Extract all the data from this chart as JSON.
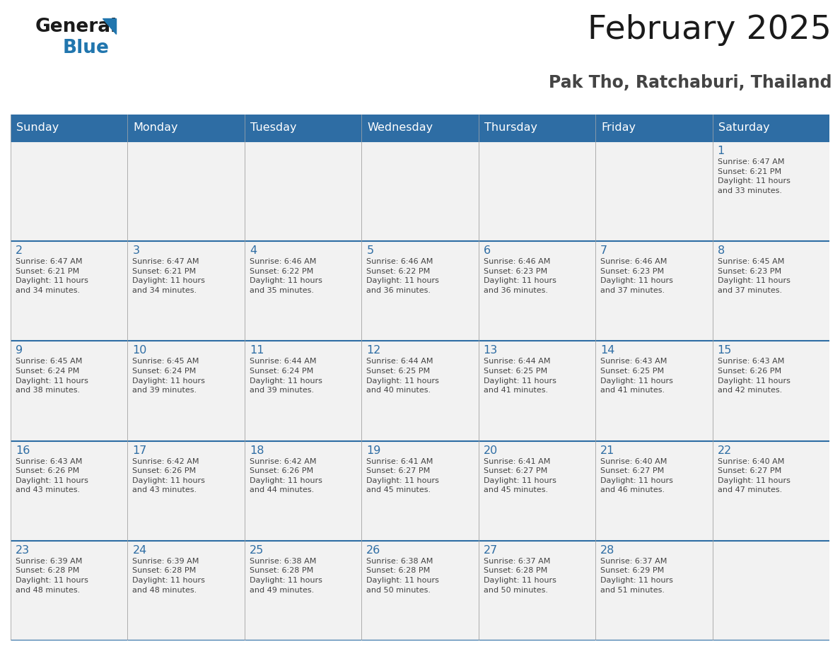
{
  "title": "February 2025",
  "subtitle": "Pak Tho, Ratchaburi, Thailand",
  "header_bg": "#2E6DA4",
  "header_text_color": "#FFFFFF",
  "cell_bg": "#F2F2F2",
  "day_number_color": "#2E6DA4",
  "info_text_color": "#444444",
  "border_color": "#2E6DA4",
  "cell_border_color": "#AAAAAA",
  "days_of_week": [
    "Sunday",
    "Monday",
    "Tuesday",
    "Wednesday",
    "Thursday",
    "Friday",
    "Saturday"
  ],
  "weeks": [
    [
      {
        "day": null,
        "info": null
      },
      {
        "day": null,
        "info": null
      },
      {
        "day": null,
        "info": null
      },
      {
        "day": null,
        "info": null
      },
      {
        "day": null,
        "info": null
      },
      {
        "day": null,
        "info": null
      },
      {
        "day": 1,
        "info": "Sunrise: 6:47 AM\nSunset: 6:21 PM\nDaylight: 11 hours\nand 33 minutes."
      }
    ],
    [
      {
        "day": 2,
        "info": "Sunrise: 6:47 AM\nSunset: 6:21 PM\nDaylight: 11 hours\nand 34 minutes."
      },
      {
        "day": 3,
        "info": "Sunrise: 6:47 AM\nSunset: 6:21 PM\nDaylight: 11 hours\nand 34 minutes."
      },
      {
        "day": 4,
        "info": "Sunrise: 6:46 AM\nSunset: 6:22 PM\nDaylight: 11 hours\nand 35 minutes."
      },
      {
        "day": 5,
        "info": "Sunrise: 6:46 AM\nSunset: 6:22 PM\nDaylight: 11 hours\nand 36 minutes."
      },
      {
        "day": 6,
        "info": "Sunrise: 6:46 AM\nSunset: 6:23 PM\nDaylight: 11 hours\nand 36 minutes."
      },
      {
        "day": 7,
        "info": "Sunrise: 6:46 AM\nSunset: 6:23 PM\nDaylight: 11 hours\nand 37 minutes."
      },
      {
        "day": 8,
        "info": "Sunrise: 6:45 AM\nSunset: 6:23 PM\nDaylight: 11 hours\nand 37 minutes."
      }
    ],
    [
      {
        "day": 9,
        "info": "Sunrise: 6:45 AM\nSunset: 6:24 PM\nDaylight: 11 hours\nand 38 minutes."
      },
      {
        "day": 10,
        "info": "Sunrise: 6:45 AM\nSunset: 6:24 PM\nDaylight: 11 hours\nand 39 minutes."
      },
      {
        "day": 11,
        "info": "Sunrise: 6:44 AM\nSunset: 6:24 PM\nDaylight: 11 hours\nand 39 minutes."
      },
      {
        "day": 12,
        "info": "Sunrise: 6:44 AM\nSunset: 6:25 PM\nDaylight: 11 hours\nand 40 minutes."
      },
      {
        "day": 13,
        "info": "Sunrise: 6:44 AM\nSunset: 6:25 PM\nDaylight: 11 hours\nand 41 minutes."
      },
      {
        "day": 14,
        "info": "Sunrise: 6:43 AM\nSunset: 6:25 PM\nDaylight: 11 hours\nand 41 minutes."
      },
      {
        "day": 15,
        "info": "Sunrise: 6:43 AM\nSunset: 6:26 PM\nDaylight: 11 hours\nand 42 minutes."
      }
    ],
    [
      {
        "day": 16,
        "info": "Sunrise: 6:43 AM\nSunset: 6:26 PM\nDaylight: 11 hours\nand 43 minutes."
      },
      {
        "day": 17,
        "info": "Sunrise: 6:42 AM\nSunset: 6:26 PM\nDaylight: 11 hours\nand 43 minutes."
      },
      {
        "day": 18,
        "info": "Sunrise: 6:42 AM\nSunset: 6:26 PM\nDaylight: 11 hours\nand 44 minutes."
      },
      {
        "day": 19,
        "info": "Sunrise: 6:41 AM\nSunset: 6:27 PM\nDaylight: 11 hours\nand 45 minutes."
      },
      {
        "day": 20,
        "info": "Sunrise: 6:41 AM\nSunset: 6:27 PM\nDaylight: 11 hours\nand 45 minutes."
      },
      {
        "day": 21,
        "info": "Sunrise: 6:40 AM\nSunset: 6:27 PM\nDaylight: 11 hours\nand 46 minutes."
      },
      {
        "day": 22,
        "info": "Sunrise: 6:40 AM\nSunset: 6:27 PM\nDaylight: 11 hours\nand 47 minutes."
      }
    ],
    [
      {
        "day": 23,
        "info": "Sunrise: 6:39 AM\nSunset: 6:28 PM\nDaylight: 11 hours\nand 48 minutes."
      },
      {
        "day": 24,
        "info": "Sunrise: 6:39 AM\nSunset: 6:28 PM\nDaylight: 11 hours\nand 48 minutes."
      },
      {
        "day": 25,
        "info": "Sunrise: 6:38 AM\nSunset: 6:28 PM\nDaylight: 11 hours\nand 49 minutes."
      },
      {
        "day": 26,
        "info": "Sunrise: 6:38 AM\nSunset: 6:28 PM\nDaylight: 11 hours\nand 50 minutes."
      },
      {
        "day": 27,
        "info": "Sunrise: 6:37 AM\nSunset: 6:28 PM\nDaylight: 11 hours\nand 50 minutes."
      },
      {
        "day": 28,
        "info": "Sunrise: 6:37 AM\nSunset: 6:29 PM\nDaylight: 11 hours\nand 51 minutes."
      },
      {
        "day": null,
        "info": null
      }
    ]
  ],
  "logo_general_color": "#1a1a1a",
  "logo_blue_color": "#2176AE",
  "logo_triangle_color": "#2176AE",
  "title_color": "#1a1a1a",
  "subtitle_color": "#444444"
}
